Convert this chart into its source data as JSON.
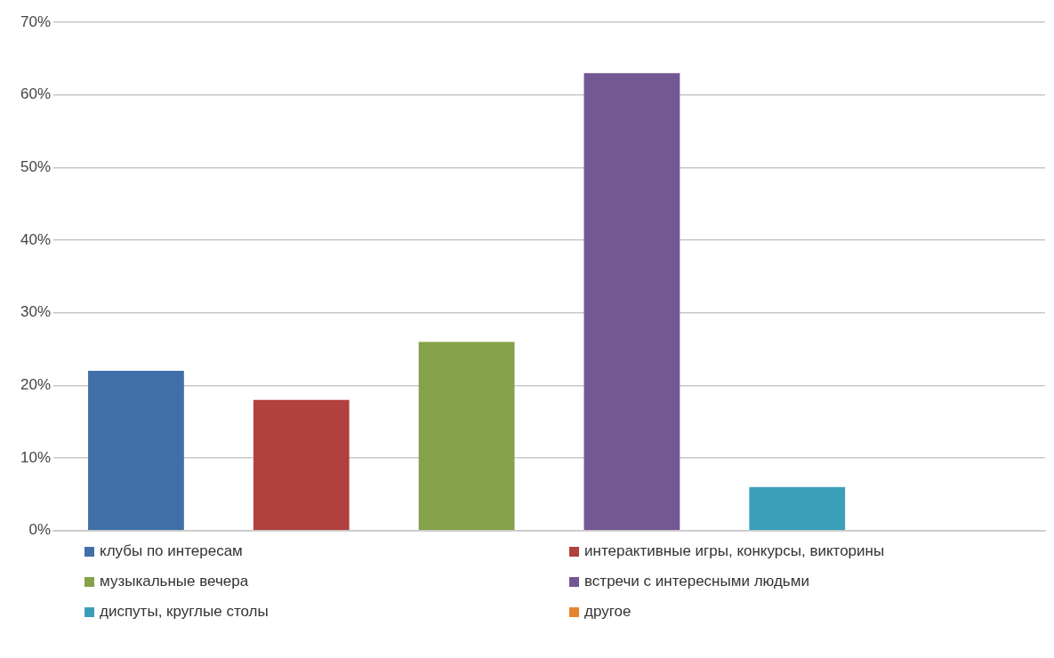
{
  "chart_data": {
    "type": "bar",
    "categories": [
      null,
      null,
      null,
      null,
      null,
      null
    ],
    "series": [
      {
        "name": "клубы по интересам",
        "color": "#4170a8",
        "values": [
          22,
          null,
          null,
          null,
          null,
          null
        ]
      },
      {
        "name": "интерактивные игры, конкурсы, викторины",
        "color": "#b0413e",
        "values": [
          null,
          18,
          null,
          null,
          null,
          null
        ]
      },
      {
        "name": "музыкальные вечера",
        "color": "#85a24b",
        "values": [
          null,
          null,
          26,
          null,
          null,
          null
        ]
      },
      {
        "name": "встречи с интересными людьми",
        "color": "#735894",
        "values": [
          null,
          null,
          null,
          63,
          null,
          null
        ]
      },
      {
        "name": "диспуты, круглые столы",
        "color": "#3b9fba",
        "values": [
          null,
          null,
          null,
          null,
          6,
          null
        ]
      },
      {
        "name": "другое",
        "color": "#e6832f",
        "values": [
          null,
          null,
          null,
          null,
          null,
          0
        ]
      }
    ],
    "ylim": [
      0,
      70
    ],
    "yticks": [
      {
        "value": 0,
        "label": "0%"
      },
      {
        "value": 10,
        "label": "10%"
      },
      {
        "value": 20,
        "label": "20%"
      },
      {
        "value": 30,
        "label": "30%"
      },
      {
        "value": 40,
        "label": "40%"
      },
      {
        "value": 50,
        "label": "50%"
      },
      {
        "value": 60,
        "label": "60%"
      },
      {
        "value": 70,
        "label": "70%"
      }
    ],
    "grid": "y",
    "legend": "bottom",
    "tick_labels": "y"
  }
}
